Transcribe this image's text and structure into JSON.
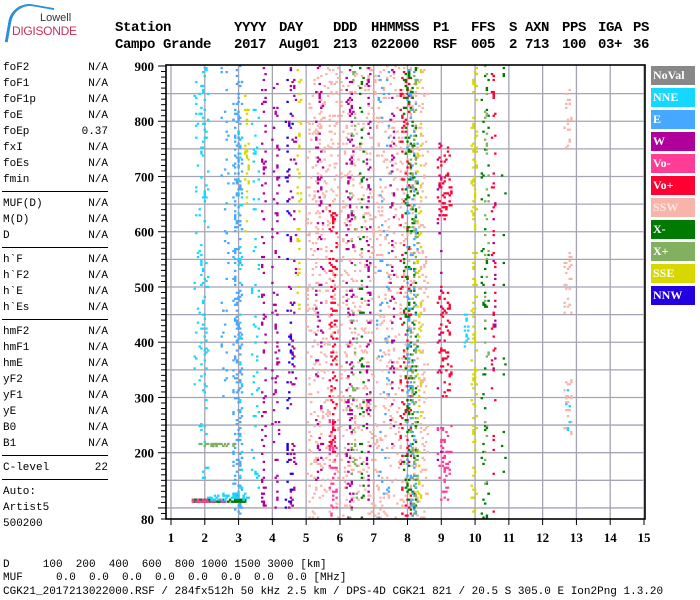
{
  "logo": {
    "line1": "Lowell",
    "line2": "DIGISONDE"
  },
  "header": {
    "labels": [
      "Station",
      "YYYY",
      "DAY",
      "DDD",
      "HHMMSS",
      "P1",
      "FFS",
      "S",
      "AXN",
      "PPS",
      "IGA",
      "PS"
    ],
    "values": [
      "Campo Grande",
      "2017",
      "Aug01",
      "213",
      "022000",
      "RSF",
      "005",
      "2",
      "713",
      "100",
      "03+",
      "36"
    ]
  },
  "params": {
    "group1": [
      [
        "foF2",
        "N/A"
      ],
      [
        "foF1",
        "N/A"
      ],
      [
        "foF1p",
        "N/A"
      ],
      [
        "foE",
        "N/A"
      ],
      [
        "foEp",
        "0.37"
      ],
      [
        "fxI",
        "N/A"
      ],
      [
        "foEs",
        "N/A"
      ],
      [
        "fmin",
        "N/A"
      ]
    ],
    "group2": [
      [
        "MUF(D)",
        "N/A"
      ],
      [
        "M(D)",
        "N/A"
      ],
      [
        "D",
        "N/A"
      ]
    ],
    "group3": [
      [
        "h`F",
        "N/A"
      ],
      [
        "h`F2",
        "N/A"
      ],
      [
        "h`E",
        "N/A"
      ],
      [
        "h`Es",
        "N/A"
      ]
    ],
    "group4": [
      [
        "hmF2",
        "N/A"
      ],
      [
        "hmF1",
        "N/A"
      ],
      [
        "hmE",
        "N/A"
      ],
      [
        "yF2",
        "N/A"
      ],
      [
        "yF1",
        "N/A"
      ],
      [
        "yE",
        "N/A"
      ],
      [
        "B0",
        "N/A"
      ],
      [
        "B1",
        "N/A"
      ]
    ],
    "clevel": [
      "C-level",
      "22"
    ],
    "auto": [
      "Auto:",
      "Artist5",
      "500200"
    ]
  },
  "legend": [
    {
      "label": "NoVal",
      "color": "#888888"
    },
    {
      "label": "NNE",
      "color": "#14d8ff"
    },
    {
      "label": "E",
      "color": "#46a8ff"
    },
    {
      "label": "W",
      "color": "#b0009c"
    },
    {
      "label": "Vo-",
      "color": "#ff3c96"
    },
    {
      "label": "Vo+",
      "color": "#ff0033"
    },
    {
      "label": "SSW",
      "color": "#f8b4aa"
    },
    {
      "label": "X-",
      "color": "#007a00"
    },
    {
      "label": "X+",
      "color": "#80b060"
    },
    {
      "label": "SSE",
      "color": "#d8d800"
    },
    {
      "label": "NNW",
      "color": "#2200e0"
    }
  ],
  "bottom": {
    "d_label": "D",
    "d_values": [
      "100",
      "200",
      "400",
      "600",
      "800",
      "1000",
      "1500",
      "3000"
    ],
    "d_unit": "[km]",
    "muf_label": "MUF",
    "muf_values": [
      "0.0",
      "0.0",
      "0.0",
      "0.0",
      "0.0",
      "0.0",
      "0.0",
      "0.0"
    ],
    "muf_unit": "[MHz]",
    "file_info": "CGK21_2017213022000.RSF / 284fx512h 50 kHz 2.5 km / DPS-4D CGK21 821 / 20.5 S 305.0 E Ion2Png 1.3.20"
  },
  "chart_data": {
    "type": "scatter",
    "xlim": [
      0.85,
      15
    ],
    "ylim": [
      80,
      900
    ],
    "xticks": [
      "1",
      "2",
      "3",
      "4",
      "5",
      "6",
      "7",
      "8",
      "9",
      "10",
      "11",
      "12",
      "13",
      "14",
      "15"
    ],
    "yticks": [
      "80",
      "200",
      "300",
      "400",
      "500",
      "600",
      "700",
      "800",
      "900"
    ],
    "grid": true,
    "grid_x_step": 1,
    "grid_y_step": 50,
    "legend_position": "right",
    "traces": [
      {
        "dir": "NNE",
        "f": [
          1.85,
          2.1
        ],
        "h": [
          150,
          900
        ],
        "n": 120
      },
      {
        "dir": "NNE",
        "f": [
          1.7,
          1.8
        ],
        "h": [
          300,
          900
        ],
        "n": 25
      },
      {
        "dir": "E",
        "f": [
          2.5,
          2.7
        ],
        "h": [
          300,
          900
        ],
        "n": 40
      },
      {
        "dir": "E",
        "f": [
          2.85,
          3.1
        ],
        "h": [
          90,
          900
        ],
        "n": 260
      },
      {
        "dir": "NNE",
        "f": [
          3.0,
          3.1
        ],
        "h": [
          100,
          800
        ],
        "n": 40
      },
      {
        "dir": "SSE",
        "f": [
          3.2,
          3.3
        ],
        "h": [
          600,
          860
        ],
        "n": 30
      },
      {
        "dir": "NNE",
        "f": [
          3.4,
          3.6
        ],
        "h": [
          100,
          850
        ],
        "n": 60
      },
      {
        "dir": "W",
        "f": [
          3.7,
          3.8
        ],
        "h": [
          100,
          900
        ],
        "n": 80
      },
      {
        "dir": "W",
        "f": [
          4.0,
          4.2
        ],
        "h": [
          100,
          900
        ],
        "n": 80
      },
      {
        "dir": "NNW",
        "f": [
          4.4,
          4.6
        ],
        "h": [
          100,
          900
        ],
        "n": 60
      },
      {
        "dir": "W",
        "f": [
          4.5,
          4.7
        ],
        "h": [
          100,
          900
        ],
        "n": 70
      },
      {
        "dir": "SSE",
        "f": [
          4.75,
          4.85
        ],
        "h": [
          450,
          900
        ],
        "n": 40
      },
      {
        "dir": "SSW",
        "f": [
          5.0,
          8.6
        ],
        "h": [
          80,
          900
        ],
        "n": 1400
      },
      {
        "dir": "W",
        "f": [
          5.3,
          5.5
        ],
        "h": [
          150,
          900
        ],
        "n": 80
      },
      {
        "dir": "Vo+",
        "f": [
          5.7,
          5.9
        ],
        "h": [
          200,
          650
        ],
        "n": 100
      },
      {
        "dir": "Vo-",
        "f": [
          5.7,
          5.9
        ],
        "h": [
          80,
          260
        ],
        "n": 40
      },
      {
        "dir": "W",
        "f": [
          6.2,
          6.4
        ],
        "h": [
          80,
          900
        ],
        "n": 120
      },
      {
        "dir": "X+",
        "f": [
          6.3,
          6.5
        ],
        "h": [
          80,
          900
        ],
        "n": 50
      },
      {
        "dir": "X-",
        "f": [
          6.6,
          6.7
        ],
        "h": [
          80,
          900
        ],
        "n": 60
      },
      {
        "dir": "W",
        "f": [
          6.8,
          6.9
        ],
        "h": [
          100,
          900
        ],
        "n": 80
      },
      {
        "dir": "E",
        "f": [
          7.1,
          7.5
        ],
        "h": [
          80,
          900
        ],
        "n": 60
      },
      {
        "dir": "W",
        "f": [
          7.5,
          7.6
        ],
        "h": [
          200,
          900
        ],
        "n": 50
      },
      {
        "dir": "Vo+",
        "f": [
          7.8,
          8.1
        ],
        "h": [
          80,
          900
        ],
        "n": 120
      },
      {
        "dir": "X-",
        "f": [
          7.9,
          8.3
        ],
        "h": [
          80,
          900
        ],
        "n": 200
      },
      {
        "dir": "E",
        "f": [
          8.0,
          8.3
        ],
        "h": [
          80,
          900
        ],
        "n": 120
      },
      {
        "dir": "X+",
        "f": [
          8.1,
          8.3
        ],
        "h": [
          80,
          900
        ],
        "n": 100
      },
      {
        "dir": "SSE",
        "f": [
          8.3,
          8.4
        ],
        "h": [
          100,
          900
        ],
        "n": 60
      },
      {
        "dir": "Vo+",
        "f": [
          8.9,
          9.3
        ],
        "h": [
          620,
          760
        ],
        "n": 60
      },
      {
        "dir": "Vo+",
        "f": [
          8.9,
          9.3
        ],
        "h": [
          300,
          500
        ],
        "n": 70
      },
      {
        "dir": "Vo-",
        "f": [
          8.9,
          9.3
        ],
        "h": [
          110,
          250
        ],
        "n": 50
      },
      {
        "dir": "W",
        "f": [
          8.9,
          9.0
        ],
        "h": [
          100,
          800
        ],
        "n": 20
      },
      {
        "dir": "NNE",
        "f": [
          9.7,
          9.8
        ],
        "h": [
          390,
          460
        ],
        "n": 15
      },
      {
        "dir": "SSE",
        "f": [
          9.9,
          10.05
        ],
        "h": [
          80,
          900
        ],
        "n": 130
      },
      {
        "dir": "X-",
        "f": [
          10.2,
          10.4
        ],
        "h": [
          80,
          900
        ],
        "n": 60
      },
      {
        "dir": "X+",
        "f": [
          10.3,
          10.4
        ],
        "h": [
          100,
          900
        ],
        "n": 40
      },
      {
        "dir": "Vo+",
        "f": [
          10.5,
          10.6
        ],
        "h": [
          80,
          900
        ],
        "n": 50
      },
      {
        "dir": "W",
        "f": [
          10.55,
          10.6
        ],
        "h": [
          350,
          700
        ],
        "n": 12
      },
      {
        "dir": "X-",
        "f": [
          10.8,
          10.9
        ],
        "h": [
          100,
          900
        ],
        "n": 15
      },
      {
        "dir": "SSW",
        "f": [
          12.65,
          12.85
        ],
        "h": [
          740,
          860
        ],
        "n": 20
      },
      {
        "dir": "SSW",
        "f": [
          12.65,
          12.85
        ],
        "h": [
          450,
          570
        ],
        "n": 25
      },
      {
        "dir": "SSW",
        "f": [
          12.65,
          12.85
        ],
        "h": [
          230,
          330
        ],
        "n": 25
      },
      {
        "dir": "NNE",
        "f": [
          12.7,
          12.8
        ],
        "h": [
          240,
          320
        ],
        "n": 6
      },
      {
        "dir": "X-",
        "f": [
          1.65,
          3.2
        ],
        "h": [
          110,
          115
        ],
        "n": 120
      },
      {
        "dir": "Vo-",
        "f": [
          1.65,
          2.6
        ],
        "h": [
          110,
          115
        ],
        "n": 40
      },
      {
        "dir": "NNE",
        "f": [
          2.0,
          3.3
        ],
        "h": [
          115,
          125
        ],
        "n": 40
      },
      {
        "dir": "X+",
        "f": [
          1.85,
          2.9
        ],
        "h": [
          213,
          216
        ],
        "n": 30
      }
    ]
  }
}
